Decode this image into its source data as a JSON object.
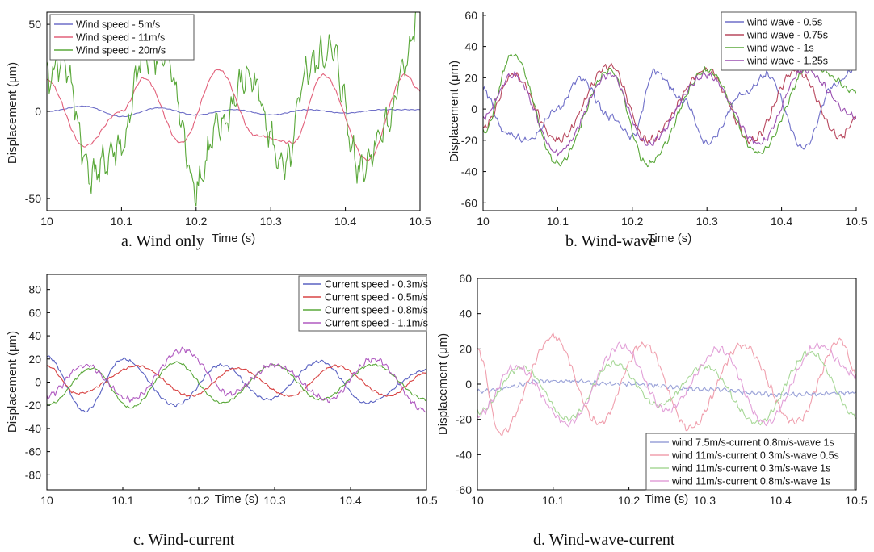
{
  "chart_data": [
    {
      "type": "line",
      "caption": "a.    Wind only",
      "xlabel": "Time (s)",
      "ylabel": "Displacement (μm)",
      "xlim": [
        10,
        10.5
      ],
      "ylim": [
        -57,
        57
      ],
      "xticks": [
        10,
        10.1,
        10.2,
        10.3,
        10.4,
        10.5
      ],
      "xtick_labels": [
        "10",
        "10.1",
        "10.2",
        "10.3",
        "10.4",
        "10.5"
      ],
      "yticks": [
        -50,
        0,
        50
      ],
      "ytick_labels": [
        "-50",
        "0",
        "50"
      ],
      "legend_position": "top-left",
      "series": [
        {
          "name": "Wind speed - 5m/s",
          "color": "#6f6fc8",
          "amp": 3,
          "period": 0.09,
          "phase": 0.5,
          "noise": 0.3,
          "noise_freq": 300,
          "points": [
            [
              10.0,
              0
            ],
            [
              10.05,
              3
            ],
            [
              10.1,
              -3
            ],
            [
              10.15,
              2
            ],
            [
              10.2,
              -2
            ],
            [
              10.25,
              1
            ],
            [
              10.3,
              -2
            ],
            [
              10.35,
              1
            ],
            [
              10.4,
              -1
            ],
            [
              10.45,
              1
            ],
            [
              10.5,
              1
            ]
          ]
        },
        {
          "name": "Wind speed - 11m/s",
          "color": "#e2607a",
          "amp": 21,
          "period": 0.18,
          "phase": 1.3,
          "noise": 0.8,
          "noise_freq": 300,
          "points": [
            [
              10.0,
              18
            ],
            [
              10.05,
              -20
            ],
            [
              10.1,
              0
            ],
            [
              10.13,
              19
            ],
            [
              10.18,
              -18
            ],
            [
              10.23,
              24
            ],
            [
              10.28,
              -14
            ],
            [
              10.33,
              -18
            ],
            [
              10.37,
              21
            ],
            [
              10.43,
              -28
            ],
            [
              10.48,
              21
            ],
            [
              10.5,
              12
            ]
          ]
        },
        {
          "name": "Wind speed - 20m/s",
          "color": "#5aa83a",
          "amp": 16,
          "period": 0.16,
          "phase": 0.4,
          "noise": 13,
          "noise_freq": 250,
          "points": [
            [
              10.0,
              18
            ],
            [
              10.02,
              30
            ],
            [
              10.06,
              -36
            ],
            [
              10.1,
              -20
            ],
            [
              10.13,
              32
            ],
            [
              10.16,
              30
            ],
            [
              10.2,
              -42
            ],
            [
              10.23,
              -10
            ],
            [
              10.27,
              20
            ],
            [
              10.32,
              -33
            ],
            [
              10.35,
              25
            ],
            [
              10.38,
              35
            ],
            [
              10.42,
              -32
            ],
            [
              10.46,
              -5
            ],
            [
              10.48,
              30
            ],
            [
              10.5,
              57
            ]
          ]
        }
      ]
    },
    {
      "type": "line",
      "caption": "b.    Wind-wave",
      "xlabel": "Time (s)",
      "ylabel": "Displacement (μm)",
      "xlim": [
        10,
        10.5
      ],
      "ylim": [
        -65,
        62
      ],
      "xticks": [
        10,
        10.1,
        10.2,
        10.3,
        10.4,
        10.5
      ],
      "xtick_labels": [
        "10",
        "10.1",
        "10.2",
        "10.3",
        "10.4",
        "10.5"
      ],
      "yticks": [
        -60,
        -40,
        -20,
        0,
        20,
        40,
        60
      ],
      "ytick_labels": [
        "-60",
        "-40",
        "-20",
        "0",
        "20",
        "40",
        "60"
      ],
      "legend_position": "top-right",
      "series": [
        {
          "name": "wind wave - 0.5s",
          "color": "#6f6fc8",
          "amp": 22,
          "period": 0.14,
          "phase": 2.6,
          "noise": 2.5,
          "noise_freq": 300,
          "points": [
            [
              10.0,
              12
            ],
            [
              10.03,
              -15
            ],
            [
              10.06,
              -20
            ],
            [
              10.1,
              0
            ],
            [
              10.13,
              20
            ],
            [
              10.17,
              -5
            ],
            [
              10.2,
              -18
            ],
            [
              10.23,
              24
            ],
            [
              10.27,
              5
            ],
            [
              10.3,
              -22
            ],
            [
              10.35,
              10
            ],
            [
              10.38,
              22
            ],
            [
              10.43,
              -25
            ],
            [
              10.47,
              15
            ],
            [
              10.5,
              26
            ]
          ]
        },
        {
          "name": "wind wave - 0.75s",
          "color": "#b8485e",
          "amp": 24,
          "period": 0.135,
          "phase": 3.4,
          "noise": 3,
          "noise_freq": 300,
          "points": [
            [
              10.0,
              -12
            ],
            [
              10.04,
              22
            ],
            [
              10.1,
              -20
            ],
            [
              10.17,
              28
            ],
            [
              10.22,
              -20
            ],
            [
              10.3,
              25
            ],
            [
              10.36,
              -20
            ],
            [
              10.42,
              25
            ],
            [
              10.48,
              -18
            ],
            [
              10.5,
              -5
            ]
          ]
        },
        {
          "name": "wind wave - 1s",
          "color": "#5aa83a",
          "amp": 29,
          "period": 0.138,
          "phase": 3.6,
          "noise": 2.5,
          "noise_freq": 300,
          "points": [
            [
              10.0,
              -15
            ],
            [
              10.04,
              35
            ],
            [
              10.1,
              -35
            ],
            [
              10.17,
              25
            ],
            [
              10.22,
              -35
            ],
            [
              10.3,
              25
            ],
            [
              10.37,
              -28
            ],
            [
              10.44,
              28
            ],
            [
              10.5,
              12
            ]
          ]
        },
        {
          "name": "wind wave - 1.25s",
          "color": "#9a4fb0",
          "amp": 22,
          "period": 0.135,
          "phase": 3.5,
          "noise": 2.5,
          "noise_freq": 300,
          "points": [
            [
              10.0,
              -5
            ],
            [
              10.04,
              22
            ],
            [
              10.1,
              -28
            ],
            [
              10.17,
              22
            ],
            [
              10.22,
              -22
            ],
            [
              10.3,
              22
            ],
            [
              10.37,
              -22
            ],
            [
              10.43,
              25
            ],
            [
              10.5,
              -5
            ]
          ]
        }
      ]
    },
    {
      "type": "line",
      "caption": "c.    Wind-current",
      "xlabel": "Time (s)",
      "ylabel": "Displacement (μm)",
      "xlim": [
        10,
        10.5
      ],
      "ylim": [
        -93,
        93
      ],
      "xticks": [
        10,
        10.1,
        10.2,
        10.3,
        10.4,
        10.5
      ],
      "xtick_labels": [
        "10",
        "10.1",
        "10.2",
        "10.3",
        "10.4",
        "10.5"
      ],
      "yticks": [
        -80,
        -60,
        -40,
        -20,
        0,
        20,
        40,
        60,
        80
      ],
      "ytick_labels": [
        "-80",
        "-60",
        "-40",
        "-20",
        "0",
        "20",
        "40",
        "60",
        "80"
      ],
      "legend_position": "top-right",
      "series": [
        {
          "name": "Current speed - 0.3m/s",
          "color": "#5a62c2",
          "amp": 20,
          "period": 0.13,
          "phase": 1.7,
          "noise": 1.5,
          "noise_freq": 300,
          "points": [
            [
              10.0,
              22
            ],
            [
              10.05,
              -25
            ],
            [
              10.1,
              20
            ],
            [
              10.17,
              -20
            ],
            [
              10.23,
              15
            ],
            [
              10.29,
              -15
            ],
            [
              10.36,
              18
            ],
            [
              10.42,
              -18
            ],
            [
              10.5,
              10
            ]
          ]
        },
        {
          "name": "Current speed - 0.5m/s",
          "color": "#d84545",
          "amp": 15,
          "period": 0.135,
          "phase": 0.9,
          "noise": 1.2,
          "noise_freq": 300,
          "points": [
            [
              10.0,
              14
            ],
            [
              10.04,
              -10
            ],
            [
              10.12,
              14
            ],
            [
              10.19,
              -12
            ],
            [
              10.25,
              12
            ],
            [
              10.32,
              -12
            ],
            [
              10.38,
              14
            ],
            [
              10.45,
              -12
            ],
            [
              10.5,
              8
            ]
          ]
        },
        {
          "name": "Current speed - 0.8m/s",
          "color": "#5aa83a",
          "amp": 17,
          "period": 0.135,
          "phase": 4.0,
          "noise": 1.3,
          "noise_freq": 300,
          "points": [
            [
              10.0,
              -20
            ],
            [
              10.06,
              12
            ],
            [
              10.11,
              -22
            ],
            [
              10.17,
              17
            ],
            [
              10.23,
              -18
            ],
            [
              10.3,
              15
            ],
            [
              10.36,
              -15
            ],
            [
              10.43,
              15
            ],
            [
              10.5,
              -15
            ]
          ]
        },
        {
          "name": "Current speed - 1.1m/s",
          "color": "#b05ac0",
          "amp": 18,
          "period": 0.135,
          "phase": 3.5,
          "noise": 3,
          "noise_freq": 300,
          "points": [
            [
              10.0,
              -12
            ],
            [
              10.05,
              15
            ],
            [
              10.11,
              -15
            ],
            [
              10.18,
              28
            ],
            [
              10.24,
              -10
            ],
            [
              10.3,
              15
            ],
            [
              10.37,
              -15
            ],
            [
              10.43,
              20
            ],
            [
              10.5,
              -25
            ]
          ]
        }
      ]
    },
    {
      "type": "line",
      "caption": "d.    Wind-wave-current",
      "xlabel": "Time (s)",
      "ylabel": "Displacement (μm)",
      "xlim": [
        10,
        10.5
      ],
      "ylim": [
        -60,
        60
      ],
      "xticks": [
        10,
        10.1,
        10.2,
        10.3,
        10.4,
        10.5
      ],
      "xtick_labels": [
        "10",
        "10.1",
        "10.2",
        "10.3",
        "10.4",
        "10.5"
      ],
      "yticks": [
        -60,
        -40,
        -20,
        0,
        20,
        40,
        60
      ],
      "ytick_labels": [
        "-60",
        "-40",
        "-20",
        "0",
        "20",
        "40",
        "60"
      ],
      "legend_position": "bottom-right",
      "series": [
        {
          "name": "wind 7.5m/s-current 0.8m/s-wave 1s",
          "color": "#9aa2d8",
          "amp": 4,
          "period": 0.25,
          "phase": 0.3,
          "noise": 1.5,
          "noise_freq": 300,
          "points": [
            [
              10.0,
              -4
            ],
            [
              10.1,
              2
            ],
            [
              10.2,
              0
            ],
            [
              10.3,
              -3
            ],
            [
              10.4,
              -6
            ],
            [
              10.5,
              -5
            ]
          ]
        },
        {
          "name": "wind 11m/s-current 0.3m/s-wave 0.5s",
          "color": "#f0a0ae",
          "amp": 26,
          "period": 0.125,
          "phase": 2.4,
          "noise": 2.5,
          "noise_freq": 300,
          "points": [
            [
              10.0,
              20
            ],
            [
              10.03,
              -28
            ],
            [
              10.1,
              27
            ],
            [
              10.16,
              -22
            ],
            [
              10.22,
              23
            ],
            [
              10.28,
              -25
            ],
            [
              10.35,
              22
            ],
            [
              10.42,
              -22
            ],
            [
              10.48,
              25
            ],
            [
              10.5,
              5
            ]
          ]
        },
        {
          "name": "wind 11m/s-current 0.3m/s-wave 1s",
          "color": "#a8d898",
          "amp": 14,
          "period": 0.13,
          "phase": 3.9,
          "noise": 2,
          "noise_freq": 300,
          "points": [
            [
              10.0,
              -16
            ],
            [
              10.06,
              10
            ],
            [
              10.12,
              -20
            ],
            [
              10.18,
              12
            ],
            [
              10.24,
              -12
            ],
            [
              10.3,
              10
            ],
            [
              10.37,
              -22
            ],
            [
              10.44,
              18
            ],
            [
              10.5,
              -18
            ]
          ]
        },
        {
          "name": "wind 11m/s-current 0.8m/s-wave 1s",
          "color": "#e2a0d8",
          "amp": 20,
          "period": 0.125,
          "phase": 3.4,
          "noise": 2.5,
          "noise_freq": 300,
          "points": [
            [
              10.0,
              -18
            ],
            [
              10.05,
              10
            ],
            [
              10.12,
              -22
            ],
            [
              10.19,
              22
            ],
            [
              10.25,
              -15
            ],
            [
              10.32,
              20
            ],
            [
              10.38,
              -22
            ],
            [
              10.45,
              22
            ],
            [
              10.5,
              5
            ]
          ]
        }
      ]
    }
  ]
}
